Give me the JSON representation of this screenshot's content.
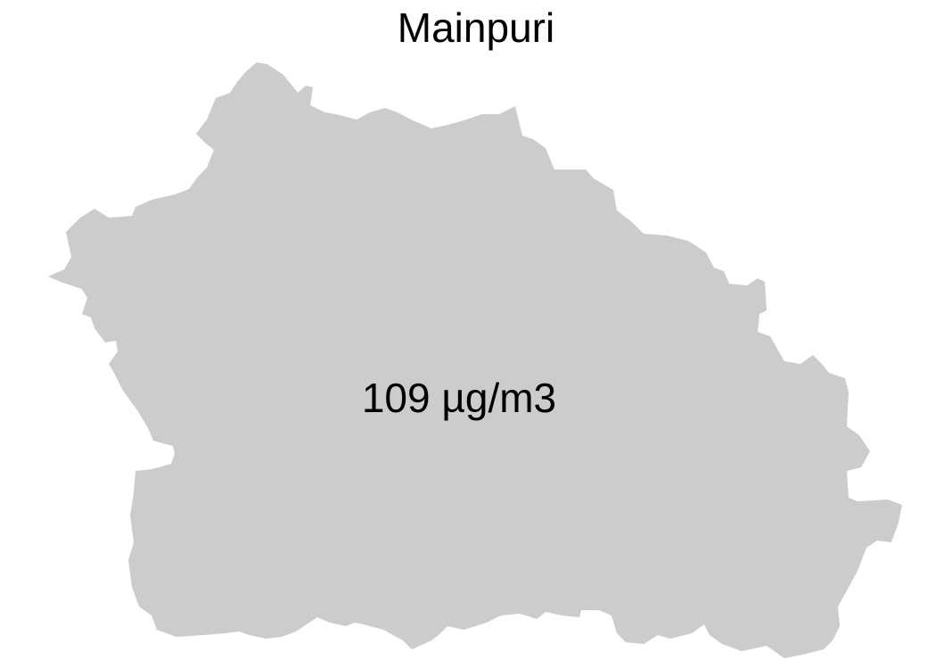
{
  "map": {
    "title": "Mainpuri",
    "region_label": "109 µg/m3",
    "fill_color": "#cccccc"
  }
}
